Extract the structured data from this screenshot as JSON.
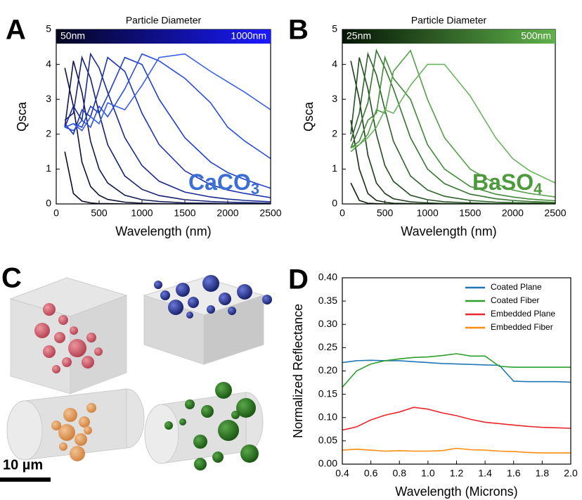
{
  "chart_data": [
    {
      "type": "line",
      "panel": "A",
      "xlabel": "Wavelength (nm)",
      "ylabel": "Qsca",
      "xlim": [
        0,
        2500
      ],
      "ylim": [
        0,
        5
      ],
      "xticks": [
        0,
        500,
        1000,
        1500,
        2000,
        2500
      ],
      "yticks": [
        0,
        1,
        2,
        3,
        4,
        5
      ],
      "colorbar": {
        "title": "Particle Diameter",
        "labels": [
          "50nm",
          "1000nm"
        ],
        "colors": [
          "#05051f",
          "#1a1aff"
        ]
      },
      "annotation": {
        "text": "CaCO",
        "subscript": "3",
        "color": "#3b6fd6"
      },
      "x": [
        100,
        200,
        300,
        400,
        500,
        600,
        800,
        1000,
        1200,
        1500,
        1800,
        2000,
        2200,
        2500
      ],
      "series": [
        {
          "color": "#0b0b22",
          "values": [
            1.5,
            0.3,
            0.08,
            0.03,
            0.01,
            0.01,
            0,
            0,
            0,
            0,
            0,
            0,
            0,
            0
          ]
        },
        {
          "color": "#0f1238",
          "values": [
            3.9,
            2.8,
            1.2,
            0.5,
            0.25,
            0.13,
            0.05,
            0.02,
            0.01,
            0,
            0,
            0,
            0,
            0
          ]
        },
        {
          "color": "#121850",
          "values": [
            2.2,
            4.1,
            3.2,
            1.8,
            1.0,
            0.6,
            0.25,
            0.12,
            0.07,
            0.03,
            0.02,
            0.01,
            0.01,
            0
          ]
        },
        {
          "color": "#152070",
          "values": [
            2.4,
            2.6,
            4.2,
            3.6,
            2.6,
            1.7,
            0.8,
            0.42,
            0.24,
            0.12,
            0.07,
            0.05,
            0.04,
            0.02
          ]
        },
        {
          "color": "#182a90",
          "values": [
            2.2,
            2.8,
            2.4,
            4.3,
            3.9,
            3.2,
            1.9,
            1.1,
            0.65,
            0.34,
            0.2,
            0.14,
            0.1,
            0.06
          ]
        },
        {
          "color": "#1c34b0",
          "values": [
            2.3,
            2.0,
            2.7,
            2.5,
            3.3,
            4.2,
            3.8,
            2.6,
            1.7,
            0.95,
            0.55,
            0.4,
            0.3,
            0.18
          ]
        },
        {
          "color": "#2040c8",
          "values": [
            2.2,
            2.3,
            2.2,
            2.8,
            2.6,
            3.1,
            4.2,
            4.0,
            3.0,
            1.9,
            1.2,
            0.9,
            0.7,
            0.45
          ]
        },
        {
          "color": "#2a4fdc",
          "values": [
            2.2,
            2.1,
            2.4,
            2.2,
            2.8,
            2.5,
            3.3,
            4.3,
            4.1,
            3.6,
            2.9,
            2.2,
            1.8,
            1.3
          ]
        },
        {
          "color": "#3a60e8",
          "values": [
            2.2,
            2.3,
            2.1,
            2.5,
            2.3,
            2.9,
            2.7,
            3.4,
            4.2,
            4.3,
            3.8,
            3.5,
            3.2,
            2.7
          ]
        }
      ]
    },
    {
      "type": "line",
      "panel": "B",
      "xlabel": "Wavelength (nm)",
      "ylabel": "Qsca",
      "xlim": [
        0,
        2500
      ],
      "ylim": [
        0,
        5
      ],
      "xticks": [
        0,
        500,
        1000,
        1500,
        2000,
        2500
      ],
      "yticks": [
        0,
        1,
        2,
        3,
        4,
        5
      ],
      "colorbar": {
        "title": "Particle Diameter",
        "labels": [
          "25nm",
          "500nm"
        ],
        "colors": [
          "#051505",
          "#5fb24a"
        ]
      },
      "annotation": {
        "text": "BaSO",
        "subscript": "4",
        "color": "#4c9a3c"
      },
      "x": [
        100,
        200,
        300,
        400,
        500,
        600,
        800,
        1000,
        1200,
        1500,
        1800,
        2000,
        2200,
        2500
      ],
      "series": [
        {
          "color": "#0d1f0d",
          "values": [
            0.6,
            0.1,
            0.02,
            0.01,
            0,
            0,
            0,
            0,
            0,
            0,
            0,
            0,
            0,
            0
          ]
        },
        {
          "color": "#142d14",
          "values": [
            2.4,
            1.0,
            0.3,
            0.1,
            0.05,
            0.02,
            0.01,
            0,
            0,
            0,
            0,
            0,
            0,
            0
          ]
        },
        {
          "color": "#1b3d1b",
          "values": [
            4.1,
            3.0,
            1.4,
            0.6,
            0.3,
            0.15,
            0.06,
            0.03,
            0.01,
            0,
            0,
            0,
            0,
            0
          ]
        },
        {
          "color": "#224f20",
          "values": [
            2.0,
            4.2,
            3.3,
            2.0,
            1.1,
            0.65,
            0.25,
            0.12,
            0.06,
            0.03,
            0.01,
            0.01,
            0,
            0
          ]
        },
        {
          "color": "#2b6228",
          "values": [
            1.8,
            2.6,
            4.3,
            3.7,
            2.7,
            1.8,
            0.8,
            0.4,
            0.22,
            0.1,
            0.05,
            0.04,
            0.03,
            0.02
          ]
        },
        {
          "color": "#357630",
          "values": [
            1.6,
            2.2,
            2.9,
            4.4,
            3.9,
            3.3,
            1.9,
            1.0,
            0.58,
            0.28,
            0.15,
            0.1,
            0.07,
            0.04
          ]
        },
        {
          "color": "#418a3a",
          "values": [
            1.6,
            1.8,
            2.4,
            2.6,
            4.2,
            3.6,
            3.0,
            1.7,
            1.0,
            0.5,
            0.28,
            0.2,
            0.14,
            0.09
          ]
        },
        {
          "color": "#539e48",
          "values": [
            1.5,
            1.7,
            2.0,
            2.7,
            2.6,
            3.8,
            4.4,
            3.0,
            1.9,
            1.0,
            0.58,
            0.4,
            0.3,
            0.2
          ]
        },
        {
          "color": "#6cb460",
          "values": [
            1.6,
            1.7,
            1.9,
            2.2,
            2.7,
            2.6,
            3.4,
            4.0,
            4.0,
            3.1,
            1.9,
            1.3,
            0.95,
            0.6
          ]
        }
      ]
    },
    {
      "type": "line",
      "panel": "D",
      "xlabel": "Wavelength (Microns)",
      "ylabel": "Normalized Reflectance",
      "xlim": [
        0.4,
        2.0
      ],
      "ylim": [
        0,
        0.4
      ],
      "xticks": [
        0.4,
        0.6,
        0.8,
        {
          "value": 1,
          "label": "1.0"
        },
        1.2,
        1.4,
        1.6,
        1.8,
        {
          "value": 2,
          "label": "2.0"
        }
      ],
      "yticks": [
        {
          "value": 0,
          "label": "0.00"
        },
        {
          "value": 0.05,
          "label": "0.05"
        },
        {
          "value": 0.1,
          "label": "0.10"
        },
        {
          "value": 0.15,
          "label": "0.15"
        },
        {
          "value": 0.2,
          "label": "0.20"
        },
        {
          "value": 0.25,
          "label": "0.25"
        },
        {
          "value": 0.3,
          "label": "0.30"
        },
        {
          "value": 0.35,
          "label": "0.35"
        },
        {
          "value": 0.4,
          "label": "0.40"
        }
      ],
      "legend": "top-right",
      "x": [
        0.4,
        0.5,
        0.6,
        0.7,
        0.8,
        0.9,
        1.0,
        1.1,
        1.2,
        1.3,
        1.4,
        1.5,
        1.6,
        1.7,
        1.8,
        1.9,
        2.0
      ],
      "series": [
        {
          "name": "Coated Plane",
          "color": "#1f77b4",
          "values": [
            0.218,
            0.222,
            0.223,
            0.222,
            0.222,
            0.22,
            0.218,
            0.216,
            0.215,
            0.214,
            0.213,
            0.212,
            0.178,
            0.177,
            0.177,
            0.177,
            0.176
          ]
        },
        {
          "name": "Coated Fiber",
          "color": "#2ca02c",
          "values": [
            0.165,
            0.2,
            0.215,
            0.222,
            0.226,
            0.229,
            0.23,
            0.233,
            0.237,
            0.232,
            0.232,
            0.21,
            0.208,
            0.208,
            0.208,
            0.208,
            0.208
          ]
        },
        {
          "name": "Embedded Plane",
          "color": "#e8262b",
          "values": [
            0.073,
            0.08,
            0.095,
            0.105,
            0.112,
            0.122,
            0.118,
            0.11,
            0.104,
            0.096,
            0.09,
            0.087,
            0.084,
            0.081,
            0.079,
            0.078,
            0.077
          ]
        },
        {
          "name": "Embedded Fiber",
          "color": "#ff8c0e",
          "values": [
            0.03,
            0.032,
            0.03,
            0.028,
            0.029,
            0.028,
            0.028,
            0.029,
            0.034,
            0.031,
            0.03,
            0.028,
            0.027,
            0.025,
            0.024,
            0.024,
            0.024
          ]
        }
      ]
    }
  ],
  "illustration": {
    "panel": "C",
    "scale_bar": "10 µm"
  }
}
